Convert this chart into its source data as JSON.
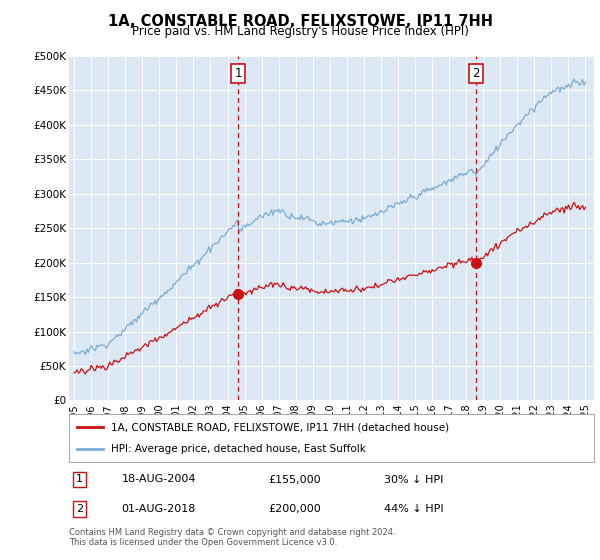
{
  "title": "1A, CONSTABLE ROAD, FELIXSTOWE, IP11 7HH",
  "subtitle": "Price paid vs. HM Land Registry's House Price Index (HPI)",
  "bg_color": "#dde8f5",
  "hpi_color": "#7aadd4",
  "price_color": "#cc1111",
  "dashed_color": "#cc1111",
  "ylim": [
    0,
    500000
  ],
  "yticks": [
    0,
    50000,
    100000,
    150000,
    200000,
    250000,
    300000,
    350000,
    400000,
    450000,
    500000
  ],
  "ytick_labels": [
    "£0",
    "£50K",
    "£100K",
    "£150K",
    "£200K",
    "£250K",
    "£300K",
    "£350K",
    "£400K",
    "£450K",
    "£500K"
  ],
  "sale1_year": 2004.625,
  "sale1_price": 155000,
  "sale1_label": "1",
  "sale1_date": "18-AUG-2004",
  "sale1_pct": "30% ↓ HPI",
  "sale2_year": 2018.583,
  "sale2_price": 200000,
  "sale2_label": "2",
  "sale2_date": "01-AUG-2018",
  "sale2_pct": "44% ↓ HPI",
  "legend_line1": "1A, CONSTABLE ROAD, FELIXSTOWE, IP11 7HH (detached house)",
  "legend_line2": "HPI: Average price, detached house, East Suffolk",
  "footer": "Contains HM Land Registry data © Crown copyright and database right 2024.\nThis data is licensed under the Open Government Licence v3.0.",
  "xlim_start": 1994.7,
  "xlim_end": 2025.5
}
